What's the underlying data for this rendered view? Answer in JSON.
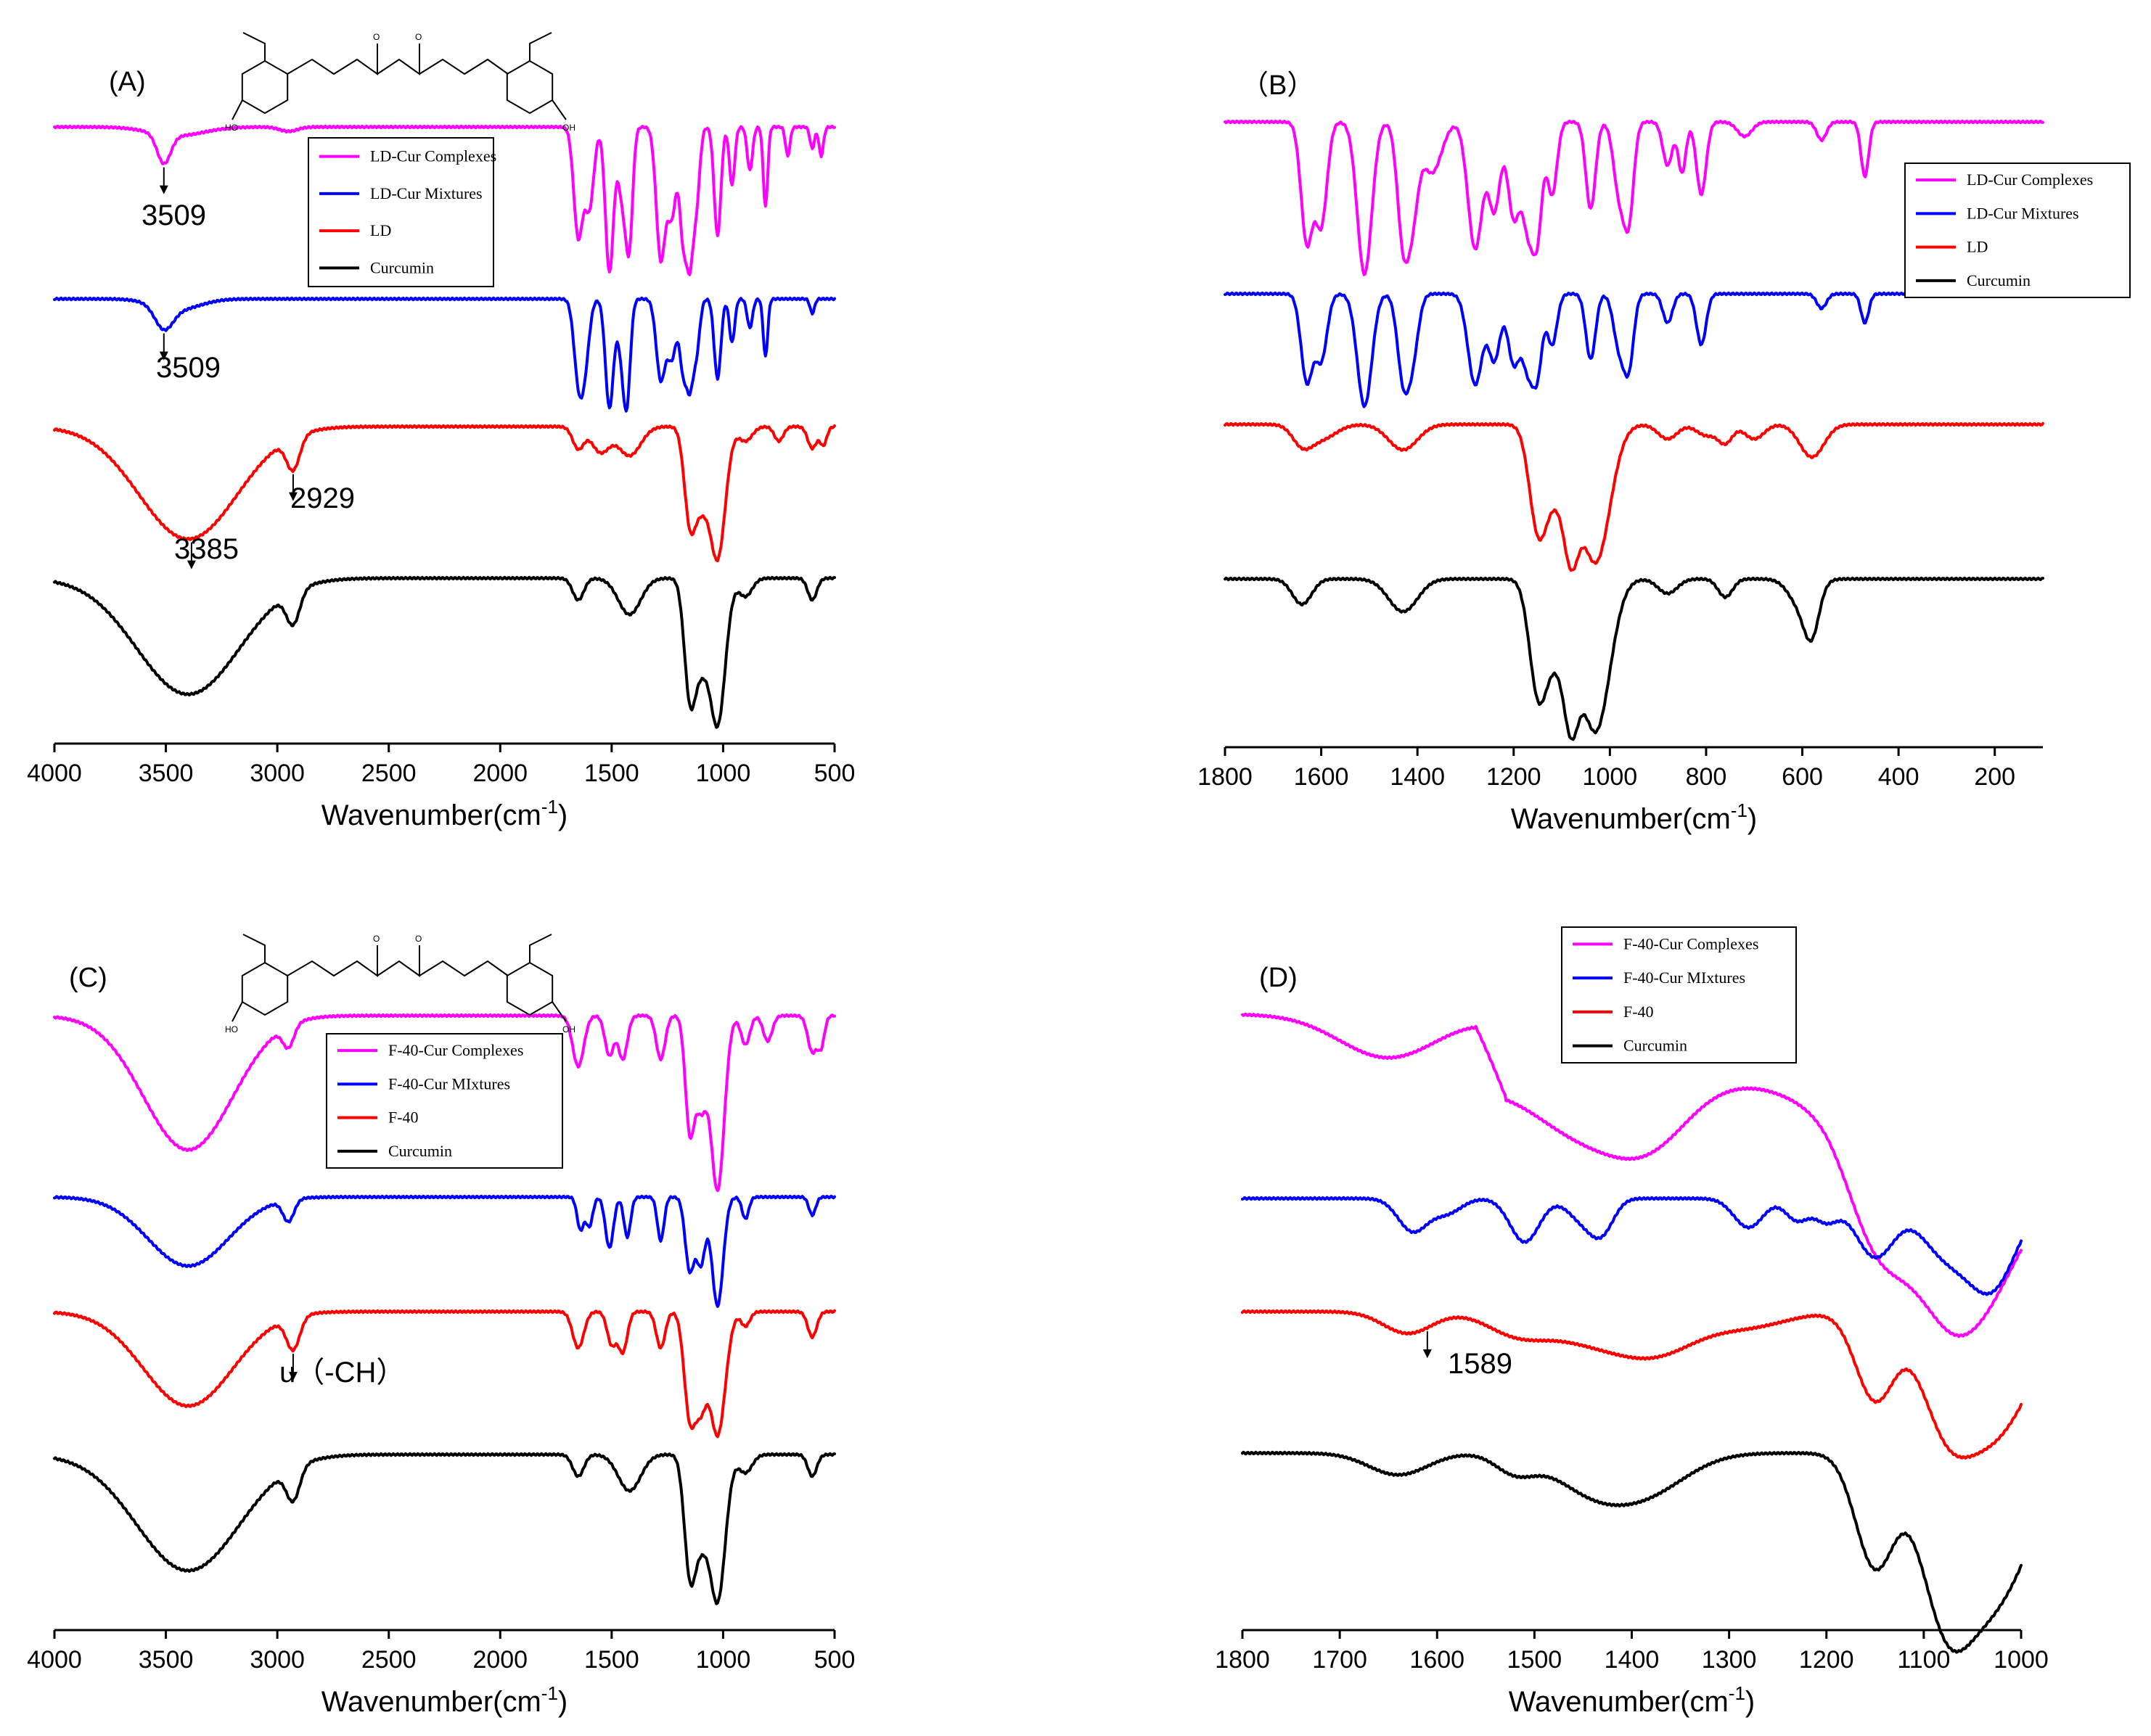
{
  "chart_data": [
    {
      "panel": "(A)",
      "type": "line",
      "xlabel": "Wavenumber(cm",
      "xlabel_sup": "-1",
      "xlabel_end": ")",
      "xlim": [
        4000,
        500
      ],
      "xticks": [
        4000,
        3500,
        3000,
        2500,
        2000,
        1500,
        1000,
        500
      ],
      "legend": [
        "LD-Cur Complexes",
        "LD-Cur Mixtures",
        "LD",
        "Curcumin"
      ],
      "legend_position": "top-right",
      "series": [
        {
          "name": "LD-Cur Complexes",
          "color": "#ff00ff",
          "offset": 0
        },
        {
          "name": "LD-Cur Mixtures",
          "color": "#0000ff",
          "offset": 1
        },
        {
          "name": "LD",
          "color": "#ff0000",
          "offset": 2
        },
        {
          "name": "Curcumin",
          "color": "#000000",
          "offset": 3
        }
      ],
      "annotations": [
        {
          "text": "3509",
          "x": 3509,
          "series": 0
        },
        {
          "text": "3509",
          "x": 3509,
          "series": 1
        },
        {
          "text": "2929",
          "x": 2929,
          "series": 2
        },
        {
          "text": "3385",
          "x": 3385,
          "series": 2
        }
      ],
      "structure_labels": [
        "HO",
        "OH",
        "O",
        "O"
      ]
    },
    {
      "panel": "（B）",
      "type": "line",
      "xlabel": "Wavenumber(cm",
      "xlabel_sup": "-1",
      "xlabel_end": ")",
      "xlim": [
        1800,
        100
      ],
      "xticks": [
        1800,
        1600,
        1400,
        1200,
        1000,
        800,
        600,
        400,
        200
      ],
      "legend": [
        "LD-Cur Complexes",
        "LD-Cur Mixtures",
        "LD",
        "Curcumin"
      ],
      "legend_position": "top-right",
      "series": [
        {
          "name": "LD-Cur Complexes",
          "color": "#ff00ff",
          "offset": 0
        },
        {
          "name": "LD-Cur Mixtures",
          "color": "#0000ff",
          "offset": 1
        },
        {
          "name": "LD",
          "color": "#ff0000",
          "offset": 2
        },
        {
          "name": "Curcumin",
          "color": "#000000",
          "offset": 3
        }
      ]
    },
    {
      "panel": "(C)",
      "type": "line",
      "xlabel": "Wavenumber(cm",
      "xlabel_sup": "-1",
      "xlabel_end": ")",
      "xlim": [
        4000,
        500
      ],
      "xticks": [
        4000,
        3500,
        3000,
        2500,
        2000,
        1500,
        1000,
        500
      ],
      "legend": [
        "F-40-Cur Complexes",
        "F-40-Cur MIxtures",
        "F-40",
        "Curcumin"
      ],
      "legend_position": "top-right",
      "series": [
        {
          "name": "F-40-Cur Complexes",
          "color": "#ff00ff",
          "offset": 0
        },
        {
          "name": "F-40-Cur MIxtures",
          "color": "#0000ff",
          "offset": 1
        },
        {
          "name": "F-40",
          "color": "#ff0000",
          "offset": 2
        },
        {
          "name": "Curcumin",
          "color": "#000000",
          "offset": 3
        }
      ],
      "annotations": [
        {
          "text": "u（-CH）",
          "x": 2929,
          "series": 2
        }
      ],
      "structure_labels": [
        "HO",
        "OH",
        "O",
        "O"
      ]
    },
    {
      "panel": "(D)",
      "type": "line",
      "xlabel": "Wavenumber(cm",
      "xlabel_sup": "-1",
      "xlabel_end": ")",
      "xlim": [
        1800,
        1000
      ],
      "xticks": [
        1800,
        1700,
        1600,
        1500,
        1400,
        1300,
        1200,
        1100,
        1000
      ],
      "legend": [
        "F-40-Cur Complexes",
        "F-40-Cur MIxtures",
        "F-40",
        "Curcumin"
      ],
      "legend_position": "top",
      "series": [
        {
          "name": "F-40-Cur Complexes",
          "color": "#ff00ff",
          "offset": 0
        },
        {
          "name": "F-40-Cur MIxtures",
          "color": "#0000ff",
          "offset": 1
        },
        {
          "name": "F-40",
          "color": "#ff0000",
          "offset": 2
        },
        {
          "name": "Curcumin",
          "color": "#000000",
          "offset": 3
        }
      ],
      "annotations": [
        {
          "text": "1589",
          "x": 1610,
          "series": 2
        }
      ]
    }
  ]
}
